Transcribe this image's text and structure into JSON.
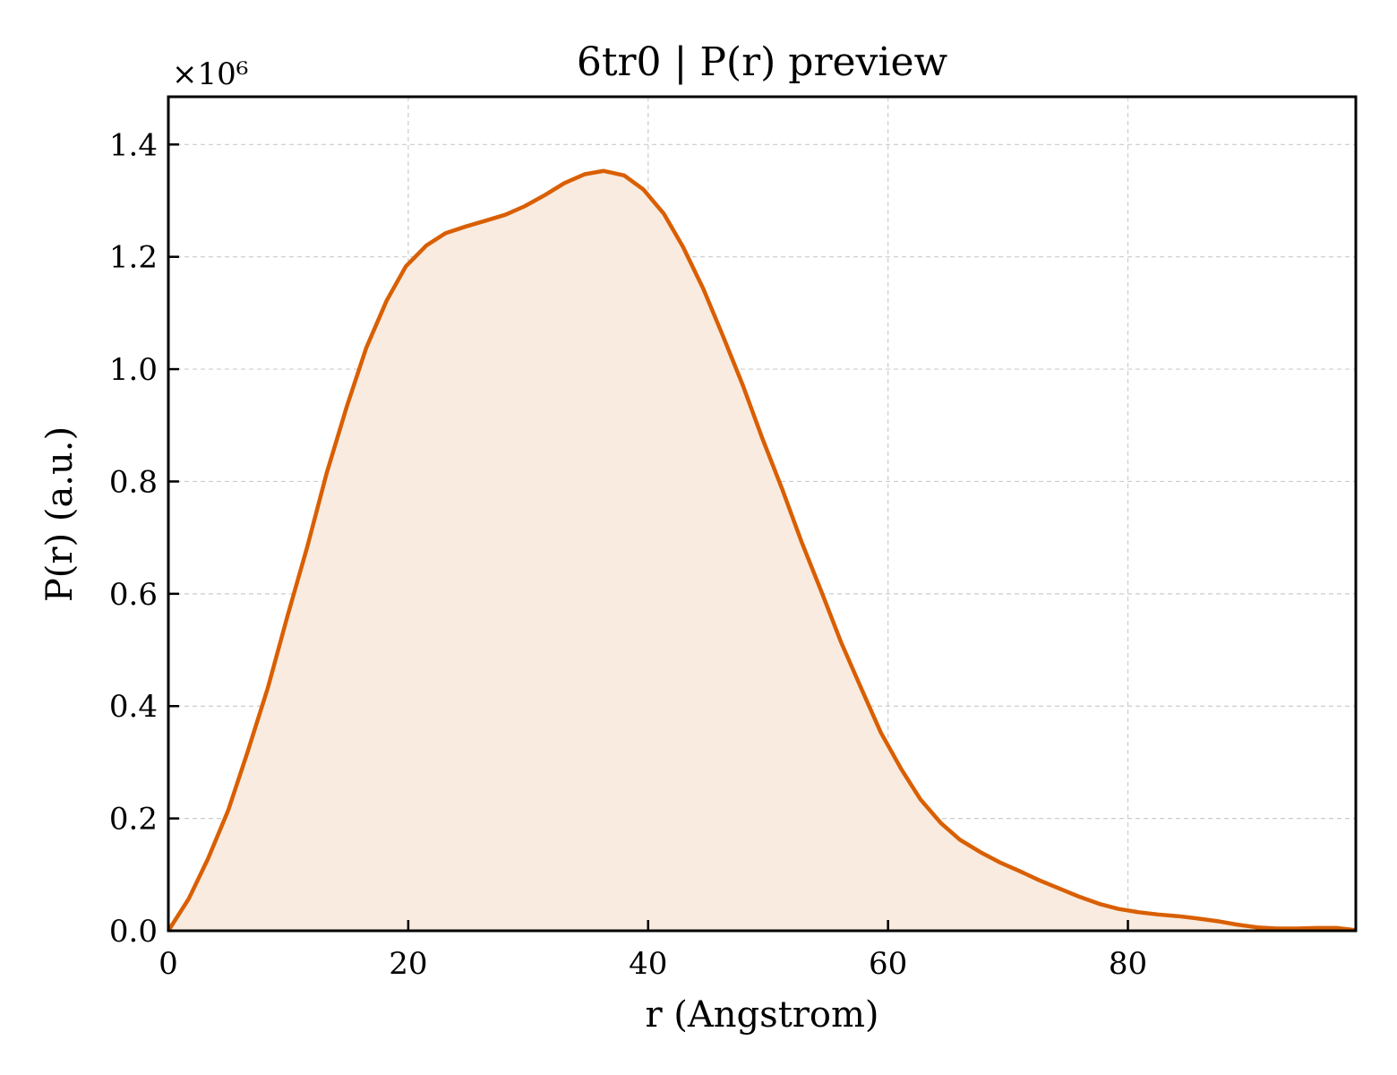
{
  "chart_data": {
    "type": "area",
    "title": "6tr0 | P(r) preview",
    "xlabel": "r (Angstrom)",
    "ylabel": "P(r) (a.u.)",
    "y_multiplier_label": "×10⁶",
    "xlim": [
      0,
      99
    ],
    "ylim": [
      0,
      1.485
    ],
    "x_ticks": [
      0,
      20,
      40,
      60,
      80
    ],
    "x_tick_labels": [
      "0",
      "20",
      "40",
      "60",
      "80"
    ],
    "y_ticks": [
      0,
      0.2,
      0.4,
      0.6,
      0.8,
      1.0,
      1.2,
      1.4
    ],
    "y_tick_labels": [
      "0.0",
      "0.2",
      "0.4",
      "0.6",
      "0.8",
      "1.0",
      "1.2",
      "1.4"
    ],
    "grid": true,
    "colors": {
      "line": "#d95f02",
      "fill": "#f9ebe0"
    },
    "series": [
      {
        "x": [
          0,
          1.7,
          3.3,
          5.0,
          6.6,
          8.3,
          9.9,
          11.6,
          13.2,
          14.9,
          16.5,
          18.2,
          19.8,
          21.5,
          23.1,
          24.8,
          26.4,
          28.1,
          29.7,
          31.4,
          33.0,
          34.7,
          36.3,
          38.0,
          39.6,
          41.3,
          42.9,
          44.6,
          46.2,
          47.9,
          49.5,
          51.2,
          52.8,
          54.5,
          56.1,
          57.8,
          59.4,
          61.1,
          62.7,
          64.4,
          66.0,
          67.7,
          69.3,
          71.0,
          72.6,
          74.3,
          75.9,
          77.6,
          79.2,
          80.9,
          82.5,
          84.2,
          85.8,
          87.5,
          89.1,
          90.8,
          92.4,
          94.1,
          95.7,
          97.4,
          99.0
        ],
        "values": [
          0.0,
          0.057,
          0.128,
          0.215,
          0.318,
          0.433,
          0.558,
          0.685,
          0.815,
          0.935,
          1.038,
          1.122,
          1.183,
          1.22,
          1.242,
          1.254,
          1.264,
          1.275,
          1.29,
          1.31,
          1.331,
          1.347,
          1.353,
          1.345,
          1.32,
          1.277,
          1.218,
          1.143,
          1.061,
          0.971,
          0.878,
          0.785,
          0.692,
          0.601,
          0.513,
          0.43,
          0.353,
          0.288,
          0.234,
          0.192,
          0.162,
          0.14,
          0.122,
          0.106,
          0.09,
          0.075,
          0.061,
          0.048,
          0.039,
          0.033,
          0.029,
          0.026,
          0.022,
          0.017,
          0.011,
          0.006,
          0.004,
          0.004,
          0.005,
          0.005,
          0.001
        ]
      }
    ]
  }
}
